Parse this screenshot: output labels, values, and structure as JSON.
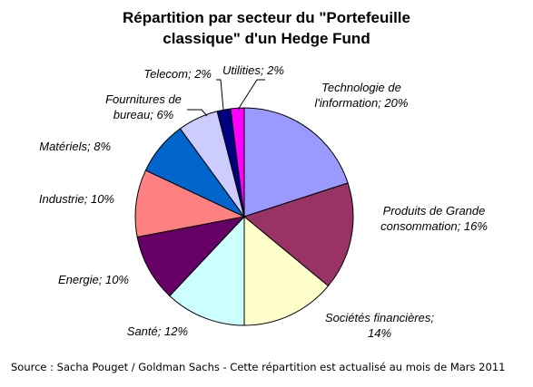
{
  "chart_data": {
    "type": "pie",
    "title_line1": "Répartition par secteur du \"Portefeuille",
    "title_line2": "classique\" d'un Hedge Fund",
    "slices": [
      {
        "name": "Technologie de l'information",
        "value": 20,
        "label_lines": [
          "Technologie de",
          "l'information; 20%"
        ],
        "color": "#9999ff"
      },
      {
        "name": "Produits de Grande consommation",
        "value": 16,
        "label_lines": [
          "Produits de Grande",
          "consommation; 16%"
        ],
        "color": "#993366"
      },
      {
        "name": "Sociétés financières",
        "value": 14,
        "label_lines": [
          "Sociétés financières;",
          "14%"
        ],
        "color": "#ffffcc"
      },
      {
        "name": "Santé",
        "value": 12,
        "label_lines": [
          "Santé; 12%"
        ],
        "color": "#ccffff"
      },
      {
        "name": "Energie",
        "value": 10,
        "label_lines": [
          "Energie; 10%"
        ],
        "color": "#660066"
      },
      {
        "name": "Industrie",
        "value": 10,
        "label_lines": [
          "Industrie; 10%"
        ],
        "color": "#ff8080"
      },
      {
        "name": "Matériels",
        "value": 8,
        "label_lines": [
          "Matériels; 8%"
        ],
        "color": "#0066cc"
      },
      {
        "name": "Fournitures de bureau",
        "value": 6,
        "label_lines": [
          "Fournitures de",
          "bureau; 6%"
        ],
        "color": "#ccccff"
      },
      {
        "name": "Telecom",
        "value": 2,
        "label_lines": [
          "Telecom; 2%"
        ],
        "color": "#000080"
      },
      {
        "name": "Utilities",
        "value": 2,
        "label_lines": [
          "Utilities; 2%"
        ],
        "color": "#ff00ff"
      }
    ]
  },
  "source_text": "Source : Sacha Pouget / Goldman Sachs - Cette répartition est actualisé au mois de Mars 2011"
}
